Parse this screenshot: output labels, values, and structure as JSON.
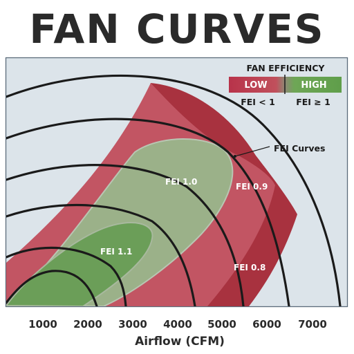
{
  "title": "FAN CURVES",
  "axis": {
    "xlabel": "Airflow (CFM)",
    "ticks": [
      "1000",
      "2000",
      "3000",
      "4000",
      "5000",
      "6000",
      "7000"
    ]
  },
  "regions": {
    "fei_1_1": "FEI 1.1",
    "fei_1_0": "FEI 1.0",
    "fei_0_9": "FEI 0.9",
    "fei_0_8": "FEI 0.8"
  },
  "callout": "FEI Curves",
  "legend": {
    "title": "FAN EFFICIENCY",
    "low": "LOW",
    "high": "HIGH",
    "low_note": "FEI < 1",
    "high_note": "FEI ≥ 1"
  },
  "colors": {
    "panel": "#dce4ea",
    "dark_red": "#a8323f",
    "red": "#c25563",
    "green_light": "#9bb189",
    "green": "#82a877",
    "green_dark": "#6b9e58",
    "curve": "#1a1a1a"
  }
}
